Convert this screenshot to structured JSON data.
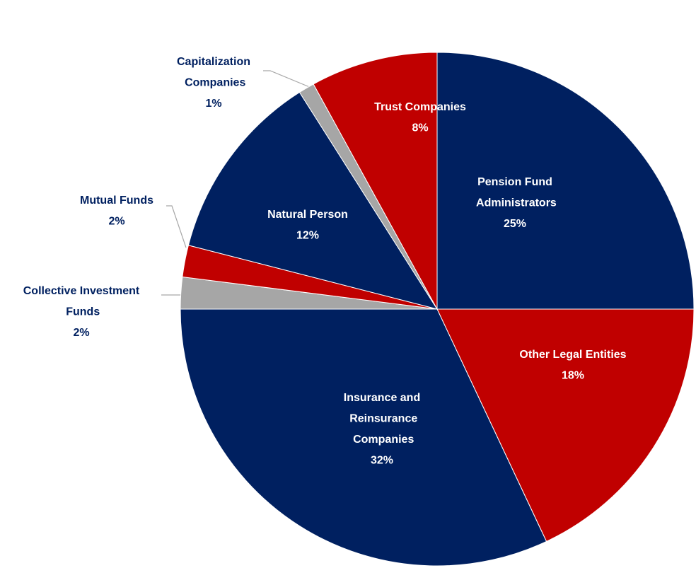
{
  "chart_data": {
    "type": "pie",
    "categories": [
      "Pension Fund Administrators",
      "Other Legal Entities",
      "Insurance and Reinsurance Companies",
      "Collective Investment Funds",
      "Mutual Funds",
      "Natural Person",
      "Capitalization Companies",
      "Trust Companies"
    ],
    "values": [
      25,
      18,
      32,
      2,
      2,
      12,
      1,
      8
    ],
    "value_labels": [
      "25%",
      "18%",
      "32%",
      "2%",
      "2%",
      "12%",
      "1%",
      "8%"
    ],
    "colors": [
      "#002060",
      "#c00000",
      "#002060",
      "#a6a6a6",
      "#c00000",
      "#002060",
      "#a6a6a6",
      "#c00000"
    ]
  }
}
